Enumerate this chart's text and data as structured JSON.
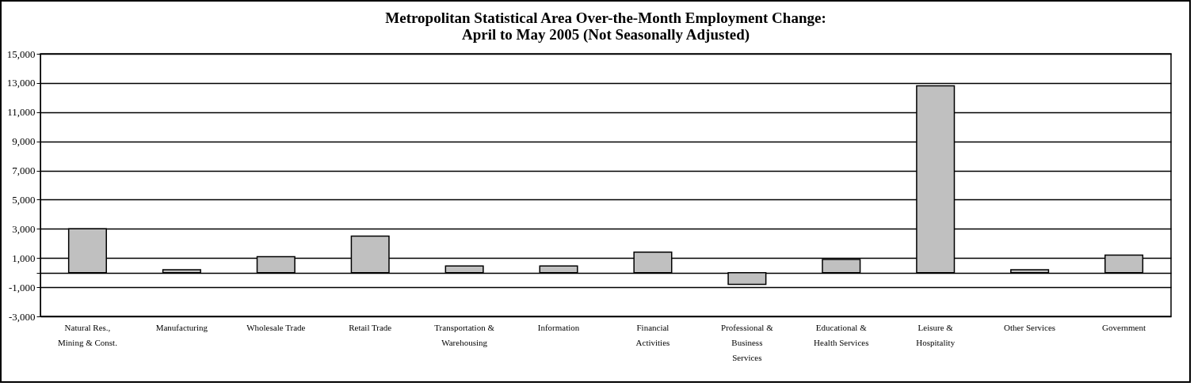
{
  "chart_data": {
    "type": "bar",
    "title": "Metropolitan Statistical Area Over-the-Month Employment Change:\nApril to May 2005 (Not Seasonally Adjusted)",
    "categories": [
      "Natural Res., Mining & Const.",
      "Manufacturing",
      "Wholesale Trade",
      "Retail Trade",
      "Transportation & Warehousing",
      "Information",
      "Financial Activities",
      "Professional & Business Services",
      "Educational & Health Services",
      "Leisure & Hospitality",
      "Other Services",
      "Government"
    ],
    "values": [
      3000,
      200,
      1100,
      2500,
      450,
      450,
      1400,
      -800,
      900,
      12800,
      200,
      1200
    ],
    "color": "#c0c0c0",
    "ylim": [
      -3000,
      15000
    ],
    "yticks": [
      {
        "value": -3000,
        "label": "-3,000"
      },
      {
        "value": -1000,
        "label": "-1,000"
      },
      {
        "value": 0,
        "label": null
      },
      {
        "value": 1000,
        "label": "1,000"
      },
      {
        "value": 3000,
        "label": "3,000"
      },
      {
        "value": 5000,
        "label": "5,000"
      },
      {
        "value": 7000,
        "label": "7,000"
      },
      {
        "value": 9000,
        "label": "9,000"
      },
      {
        "value": 11000,
        "label": "11,000"
      },
      {
        "value": 13000,
        "label": "13,000"
      },
      {
        "value": 15000,
        "label": "15,000"
      }
    ],
    "grid": "y"
  }
}
